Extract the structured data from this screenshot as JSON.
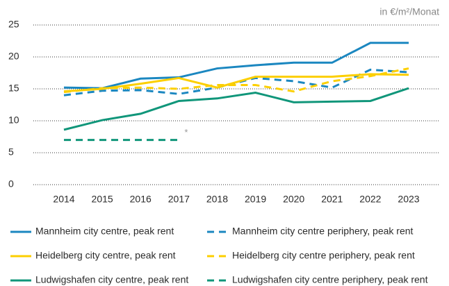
{
  "chart_data": {
    "type": "line",
    "y_label": "in €/m²/Monat",
    "categories": [
      "2014",
      "2015",
      "2016",
      "2017",
      "2018",
      "2019",
      "2020",
      "2021",
      "2022",
      "2023"
    ],
    "ylim": [
      0,
      25
    ],
    "yticks": [
      0,
      5,
      10,
      15,
      20,
      25
    ],
    "grid": true,
    "series": [
      {
        "name": "Mannheim city centre, peak rent",
        "color": "#1b87c0",
        "dashed": false,
        "values": [
          15.2,
          15.1,
          16.6,
          16.8,
          18.2,
          18.7,
          19.1,
          19.1,
          22.2,
          22.2
        ]
      },
      {
        "name": "Mannheim city centre periphery, peak rent",
        "color": "#1b87c0",
        "dashed": true,
        "values": [
          14.0,
          14.7,
          14.8,
          14.2,
          15.2,
          16.7,
          16.2,
          15.2,
          18.0,
          17.6
        ]
      },
      {
        "name": "Heidelberg city centre, peak rent",
        "color": "#fccf00",
        "dashed": false,
        "values": [
          14.6,
          15.0,
          15.8,
          16.7,
          15.2,
          16.9,
          16.9,
          16.9,
          17.3,
          17.2
        ]
      },
      {
        "name": "Heidelberg city centre periphery, peak rent",
        "color": "#fccf00",
        "dashed": true,
        "values": [
          14.5,
          15.1,
          15.2,
          15.0,
          15.6,
          15.6,
          14.6,
          16.2,
          17.0,
          18.2
        ]
      },
      {
        "name": "Ludwigshafen city centre, peak rent",
        "color": "#10967a",
        "dashed": false,
        "values": [
          8.6,
          10.1,
          11.1,
          13.1,
          13.5,
          14.4,
          12.9,
          13.0,
          13.1,
          15.1
        ]
      },
      {
        "name": "Ludwigshafen city centre periphery, peak rent",
        "color": "#10967a",
        "dashed": true,
        "values": [
          7.0,
          7.0,
          7.0,
          7.0,
          null,
          null,
          null,
          null,
          null,
          null
        ]
      }
    ],
    "annotations": [
      {
        "text": "*"
      }
    ]
  }
}
